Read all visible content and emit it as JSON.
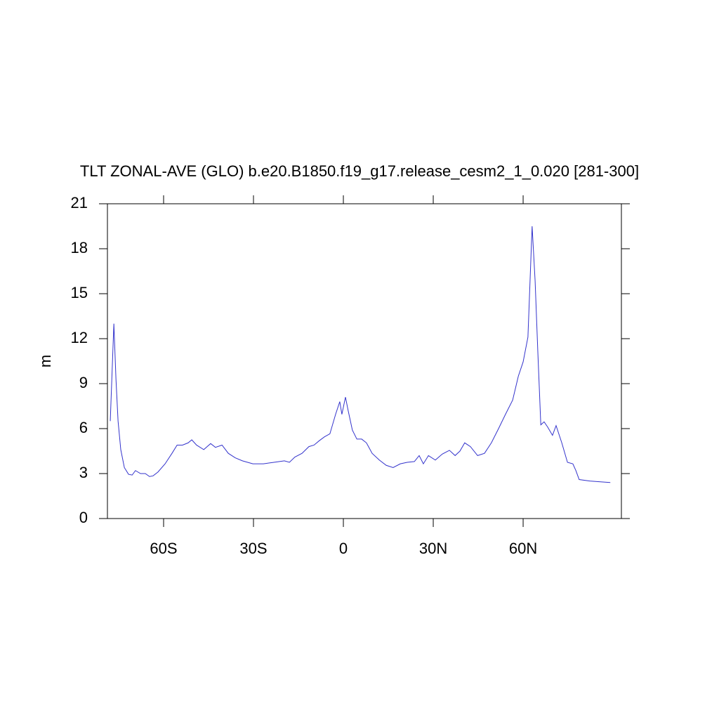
{
  "chart_data": {
    "type": "line",
    "title": "TLT ZONAL-AVE (GLO) b.e20.B1850.f19_g17.release_cesm2_1_0.020 [281-300]",
    "y_label": "m",
    "xlim": [
      -78.75,
      92.8
    ],
    "ylim": [
      0,
      21
    ],
    "xticks": [
      {
        "value": -60,
        "label": "60S"
      },
      {
        "value": -30,
        "label": "30S"
      },
      0,
      {
        "value": 30,
        "label": "30N"
      },
      {
        "value": 60,
        "label": "60N"
      }
    ],
    "yticks": [
      0,
      3,
      6,
      9,
      12,
      15,
      18,
      21
    ],
    "series": [
      {
        "color": "#3333cc",
        "x": [
          -77.8,
          -76.6,
          -75.9,
          -75.2,
          -74.3,
          -73.1,
          -71.7,
          -70.5,
          -69.4,
          -67.7,
          -66.1,
          -64.7,
          -63.5,
          -61.9,
          -59.5,
          -57.2,
          -55.5,
          -53.7,
          -51.8,
          -50.6,
          -49.0,
          -46.6,
          -44.3,
          -42.7,
          -40.5,
          -38.4,
          -36.1,
          -33.7,
          -30.2,
          -26.7,
          -23.2,
          -19.7,
          -18.0,
          -16.2,
          -13.8,
          -11.5,
          -9.8,
          -8.0,
          -6.3,
          -4.5,
          -2.6,
          -1.2,
          -0.5,
          0.7,
          1.6,
          3.0,
          4.5,
          6.1,
          7.7,
          9.6,
          12.0,
          14.3,
          16.6,
          19.0,
          21.3,
          23.7,
          25.3,
          26.7,
          28.4,
          30.7,
          33.0,
          35.4,
          37.3,
          38.9,
          40.5,
          42.4,
          44.8,
          47.1,
          49.4,
          51.8,
          54.1,
          56.5,
          58.4,
          60.0,
          61.6,
          63.0,
          64.0,
          64.9,
          65.9,
          67.0,
          68.2,
          69.8,
          71.0,
          72.9,
          74.8,
          76.6,
          77.6,
          78.7,
          82.3,
          85.8,
          89.1
        ],
        "values": [
          6.5,
          13.0,
          9.3,
          6.5,
          4.6,
          3.4,
          2.95,
          2.9,
          3.2,
          3.0,
          3.0,
          2.8,
          2.85,
          3.1,
          3.65,
          4.35,
          4.9,
          4.9,
          5.05,
          5.25,
          4.9,
          4.6,
          5.0,
          4.75,
          4.9,
          4.35,
          4.05,
          3.85,
          3.65,
          3.65,
          3.75,
          3.85,
          3.75,
          4.1,
          4.35,
          4.8,
          4.9,
          5.2,
          5.45,
          5.65,
          6.95,
          7.8,
          6.95,
          8.1,
          7.2,
          5.9,
          5.3,
          5.3,
          5.05,
          4.35,
          3.9,
          3.55,
          3.4,
          3.65,
          3.75,
          3.8,
          4.2,
          3.65,
          4.2,
          3.9,
          4.3,
          4.55,
          4.2,
          4.5,
          5.05,
          4.8,
          4.2,
          4.35,
          5.05,
          6.0,
          6.95,
          7.9,
          9.5,
          10.45,
          12.1,
          19.5,
          15.85,
          11.15,
          6.25,
          6.45,
          6.1,
          5.55,
          6.2,
          5.05,
          3.75,
          3.65,
          3.2,
          2.6,
          2.5,
          2.45,
          2.4
        ]
      }
    ]
  }
}
